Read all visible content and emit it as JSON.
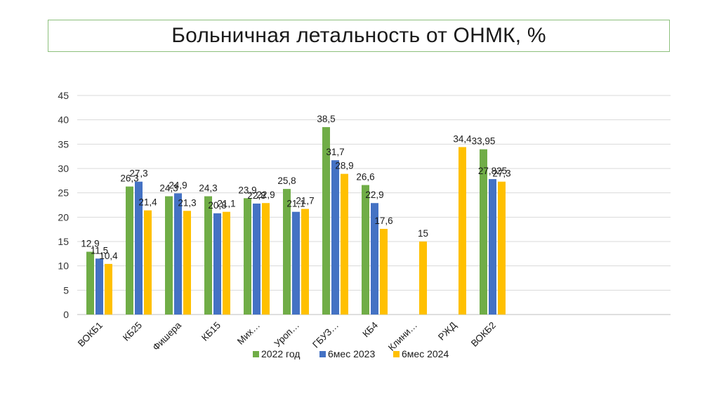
{
  "slide": {
    "title": "Больничная летальность от ОНМК, %"
  },
  "chart_data": {
    "type": "bar",
    "title": "",
    "xlabel": "",
    "ylabel": "",
    "ylim": [
      0,
      45
    ],
    "yticks": [
      0,
      5,
      10,
      15,
      20,
      25,
      30,
      35,
      40,
      45
    ],
    "grid": true,
    "legend_position": "bottom",
    "categories": [
      "ВОКБ1",
      "КБ25",
      "Фишера",
      "КБ15",
      "Мих…",
      "Уроп…",
      "ГБУЗ…",
      "КБ4",
      "Клини…",
      "РЖД",
      "ВОКБ2"
    ],
    "series": [
      {
        "name": "2022 год",
        "color": "#70ad47",
        "values": [
          12.9,
          26.3,
          24.3,
          24.3,
          23.9,
          25.8,
          38.5,
          26.6,
          null,
          null,
          33.95
        ],
        "labels": [
          "12,9",
          "26,3",
          "24,3",
          "24,3",
          "23,9",
          "25,8",
          "38,5",
          "26,6",
          "",
          "",
          "33,95"
        ]
      },
      {
        "name": "6мес 2023",
        "color": "#4472c4",
        "values": [
          11.5,
          27.3,
          24.9,
          20.8,
          22.8,
          21.1,
          31.7,
          22.9,
          null,
          null,
          27.825
        ],
        "labels": [
          "11,5",
          "27,3",
          "24,9",
          "20,8",
          "22,8",
          "21,1",
          "31,7",
          "22,9",
          "",
          "",
          "27,825"
        ]
      },
      {
        "name": "6мес 2024",
        "color": "#ffc000",
        "values": [
          10.4,
          21.4,
          21.3,
          21.1,
          22.9,
          21.7,
          28.9,
          17.6,
          15,
          34.4,
          27.3
        ],
        "labels": [
          "10,4",
          "21,4",
          "21,3",
          "21,1",
          "22,9",
          "21,7",
          "28,9",
          "17,6",
          "15",
          "34,4",
          "27,3"
        ]
      }
    ]
  }
}
